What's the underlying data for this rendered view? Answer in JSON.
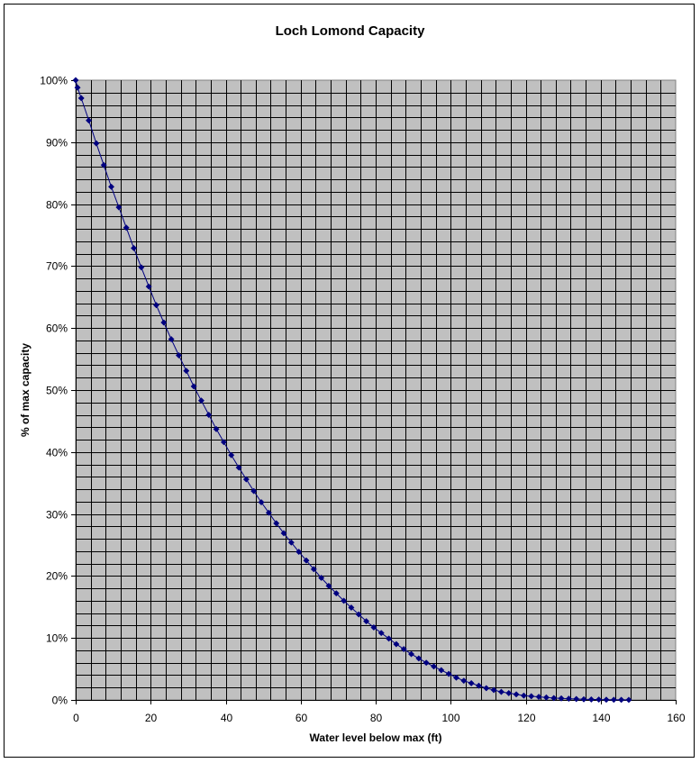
{
  "chart_data": {
    "type": "line",
    "title": "Loch Lomond Capacity",
    "xlabel": "Water level below max (ft)",
    "ylabel": "% of max capacity",
    "xlim": [
      0,
      160
    ],
    "ylim": [
      0,
      1
    ],
    "x_ticks": [
      0,
      20,
      40,
      60,
      80,
      100,
      120,
      140,
      160
    ],
    "y_ticks": [
      "0%",
      "10%",
      "20%",
      "30%",
      "40%",
      "50%",
      "60%",
      "70%",
      "80%",
      "90%",
      "100%"
    ],
    "grid": true,
    "legend": "none",
    "colors": {
      "plot_background": "#c0c0c0",
      "gridline": "#000000",
      "series": "#000080"
    },
    "series": [
      {
        "x": [
          0,
          0.5,
          1.5,
          3.5,
          5.5,
          7.5,
          9.5,
          11.5,
          13.5,
          15.5,
          17.5,
          19.5,
          21.5,
          23.5,
          25.5,
          27.5,
          29.5,
          31.5,
          33.5,
          35.5,
          37.5,
          39.5,
          41.5,
          43.5,
          45.5,
          47.5,
          49.5,
          51.5,
          53.5,
          55.5,
          57.5,
          59.5,
          61.5,
          63.5,
          65.5,
          67.5,
          69.5,
          71.5,
          73.5,
          75.5,
          77.5,
          79.5,
          81.5,
          83.5,
          85.5,
          87.5,
          89.5,
          91.5,
          93.5,
          95.5,
          97.5,
          99.5,
          101.5,
          103.5,
          105.5,
          107.5,
          109.5,
          111.5,
          113.5,
          115.5,
          117.5,
          119.5,
          121.5,
          123.5,
          125.5,
          127.5,
          129.5,
          131.5,
          133.5,
          135.5,
          137.5,
          139.5,
          141.5,
          143.5,
          145.5,
          147.5
        ],
        "values": [
          1.0,
          0.988,
          0.971,
          0.935,
          0.898,
          0.863,
          0.828,
          0.795,
          0.762,
          0.729,
          0.698,
          0.667,
          0.637,
          0.609,
          0.582,
          0.556,
          0.531,
          0.506,
          0.483,
          0.46,
          0.437,
          0.416,
          0.395,
          0.375,
          0.356,
          0.337,
          0.319,
          0.302,
          0.285,
          0.269,
          0.254,
          0.239,
          0.225,
          0.211,
          0.197,
          0.184,
          0.172,
          0.16,
          0.149,
          0.138,
          0.127,
          0.117,
          0.108,
          0.099,
          0.09,
          0.082,
          0.074,
          0.067,
          0.06,
          0.054,
          0.048,
          0.042,
          0.036,
          0.031,
          0.027,
          0.023,
          0.019,
          0.016,
          0.013,
          0.011,
          0.009,
          0.007,
          0.006,
          0.005,
          0.004,
          0.003,
          0.0025,
          0.002,
          0.0015,
          0.001,
          0.0008,
          0.0006,
          0.0004,
          0.0003,
          0.0002,
          0.0001
        ]
      }
    ]
  }
}
